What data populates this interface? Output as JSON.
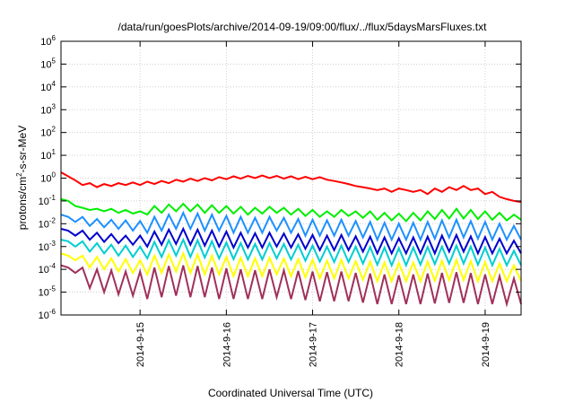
{
  "chart_data": {
    "type": "line",
    "title": "/data/run/goesPlots/archive/2014-09-19/09:00/flux/../flux/5daysMarsFluxes.txt",
    "xlabel": "Coordinated Universal Time (UTC)",
    "ylabel": {
      "base": "protons/cm",
      "sup": "2",
      "rest": "-s-sr-MeV"
    },
    "xlim": [
      "2014-09-14T02:00",
      "2014-09-19T10:00"
    ],
    "ylim": [
      1e-06,
      1000000
    ],
    "yscale": "log",
    "grid": true,
    "legend": "none",
    "x_ticks": [
      "2014-9-15",
      "2014-9-16",
      "2014-9-17",
      "2014-9-18",
      "2014-9-19"
    ],
    "y_ticks": [
      {
        "base": "10",
        "exp": "-6"
      },
      {
        "base": "10",
        "exp": "-5"
      },
      {
        "base": "10",
        "exp": "-4"
      },
      {
        "base": "10",
        "exp": "-3"
      },
      {
        "base": "10",
        "exp": "-2"
      },
      {
        "base": "10",
        "exp": "-1"
      },
      {
        "base": "10",
        "exp": "0"
      },
      {
        "base": "10",
        "exp": "1"
      },
      {
        "base": "10",
        "exp": "2"
      },
      {
        "base": "10",
        "exp": "3"
      },
      {
        "base": "10",
        "exp": "4"
      },
      {
        "base": "10",
        "exp": "5"
      },
      {
        "base": "10",
        "exp": "6"
      }
    ],
    "x": [
      "2014-09-14T02:00",
      "2014-09-14T04:00",
      "2014-09-14T06:00",
      "2014-09-14T08:00",
      "2014-09-14T10:00",
      "2014-09-14T12:00",
      "2014-09-14T14:00",
      "2014-09-14T16:00",
      "2014-09-14T18:00",
      "2014-09-14T20:00",
      "2014-09-14T22:00",
      "2014-09-15T00:00",
      "2014-09-15T02:00",
      "2014-09-15T04:00",
      "2014-09-15T06:00",
      "2014-09-15T08:00",
      "2014-09-15T10:00",
      "2014-09-15T12:00",
      "2014-09-15T14:00",
      "2014-09-15T16:00",
      "2014-09-15T18:00",
      "2014-09-15T20:00",
      "2014-09-15T22:00",
      "2014-09-16T00:00",
      "2014-09-16T02:00",
      "2014-09-16T04:00",
      "2014-09-16T06:00",
      "2014-09-16T08:00",
      "2014-09-16T10:00",
      "2014-09-16T12:00",
      "2014-09-16T14:00",
      "2014-09-16T16:00",
      "2014-09-16T18:00",
      "2014-09-16T20:00",
      "2014-09-16T22:00",
      "2014-09-17T00:00",
      "2014-09-17T02:00",
      "2014-09-17T04:00",
      "2014-09-17T06:00",
      "2014-09-17T08:00",
      "2014-09-17T10:00",
      "2014-09-17T12:00",
      "2014-09-17T14:00",
      "2014-09-17T16:00",
      "2014-09-17T18:00",
      "2014-09-17T20:00",
      "2014-09-17T22:00",
      "2014-09-18T00:00",
      "2014-09-18T02:00",
      "2014-09-18T04:00",
      "2014-09-18T06:00",
      "2014-09-18T08:00",
      "2014-09-18T10:00",
      "2014-09-18T12:00",
      "2014-09-18T14:00",
      "2014-09-18T16:00",
      "2014-09-18T18:00",
      "2014-09-18T20:00",
      "2014-09-18T22:00",
      "2014-09-19T00:00",
      "2014-09-19T02:00",
      "2014-09-19T04:00",
      "2014-09-19T06:00",
      "2014-09-19T08:00",
      "2014-09-19T10:00"
    ],
    "series": [
      {
        "color": "#ff0000",
        "values": [
          1.8,
          1.2,
          0.8,
          0.5,
          0.6,
          0.4,
          0.55,
          0.45,
          0.6,
          0.5,
          0.65,
          0.5,
          0.7,
          0.55,
          0.75,
          0.6,
          0.85,
          0.7,
          0.95,
          0.75,
          1.0,
          0.8,
          1.1,
          0.9,
          1.2,
          0.95,
          1.25,
          1.0,
          1.3,
          1.0,
          1.25,
          0.95,
          1.2,
          0.9,
          1.15,
          0.9,
          1.1,
          0.85,
          0.75,
          0.65,
          0.55,
          0.45,
          0.4,
          0.35,
          0.3,
          0.35,
          0.25,
          0.35,
          0.3,
          0.25,
          0.3,
          0.2,
          0.35,
          0.25,
          0.4,
          0.3,
          0.45,
          0.3,
          0.35,
          0.2,
          0.25,
          0.15,
          0.12,
          0.1,
          0.09
        ]
      },
      {
        "color": "#00ee00",
        "values": [
          0.12,
          0.1,
          0.06,
          0.05,
          0.04,
          0.045,
          0.035,
          0.045,
          0.03,
          0.04,
          0.028,
          0.035,
          0.025,
          0.06,
          0.03,
          0.07,
          0.035,
          0.075,
          0.035,
          0.07,
          0.03,
          0.065,
          0.03,
          0.06,
          0.028,
          0.055,
          0.025,
          0.05,
          0.028,
          0.055,
          0.03,
          0.05,
          0.025,
          0.045,
          0.022,
          0.04,
          0.02,
          0.035,
          0.02,
          0.04,
          0.022,
          0.035,
          0.018,
          0.035,
          0.015,
          0.03,
          0.014,
          0.028,
          0.013,
          0.03,
          0.014,
          0.035,
          0.016,
          0.04,
          0.017,
          0.045,
          0.017,
          0.04,
          0.016,
          0.035,
          0.015,
          0.03,
          0.014,
          0.025,
          0.015
        ]
      },
      {
        "color": "#1e90ff",
        "values": [
          0.025,
          0.02,
          0.012,
          0.02,
          0.008,
          0.016,
          0.007,
          0.015,
          0.006,
          0.014,
          0.005,
          0.013,
          0.004,
          0.02,
          0.005,
          0.025,
          0.006,
          0.03,
          0.006,
          0.028,
          0.005,
          0.025,
          0.005,
          0.022,
          0.004,
          0.02,
          0.004,
          0.018,
          0.004,
          0.02,
          0.005,
          0.018,
          0.004,
          0.016,
          0.003,
          0.015,
          0.003,
          0.014,
          0.003,
          0.015,
          0.003,
          0.013,
          0.0025,
          0.012,
          0.002,
          0.011,
          0.002,
          0.01,
          0.002,
          0.011,
          0.002,
          0.012,
          0.0022,
          0.014,
          0.0025,
          0.015,
          0.0025,
          0.013,
          0.0022,
          0.012,
          0.002,
          0.01,
          0.002,
          0.008,
          0.002
        ]
      },
      {
        "color": "#0000cd",
        "values": [
          0.006,
          0.005,
          0.003,
          0.005,
          0.002,
          0.004,
          0.0016,
          0.0035,
          0.0014,
          0.003,
          0.0012,
          0.003,
          0.001,
          0.0045,
          0.0012,
          0.0055,
          0.0013,
          0.006,
          0.0012,
          0.0055,
          0.0011,
          0.005,
          0.001,
          0.0045,
          0.0009,
          0.004,
          0.0009,
          0.0038,
          0.0009,
          0.004,
          0.001,
          0.0037,
          0.0009,
          0.0034,
          0.0008,
          0.0032,
          0.0007,
          0.003,
          0.0007,
          0.0032,
          0.0007,
          0.0028,
          0.0006,
          0.0027,
          0.0005,
          0.0025,
          0.0005,
          0.0023,
          0.0005,
          0.0025,
          0.0005,
          0.0027,
          0.0005,
          0.003,
          0.0006,
          0.0032,
          0.0006,
          0.0028,
          0.0005,
          0.0026,
          0.0005,
          0.0022,
          0.0005,
          0.0018,
          0.0005
        ]
      },
      {
        "color": "#00ced1",
        "values": [
          0.002,
          0.0017,
          0.001,
          0.0017,
          0.0006,
          0.0014,
          0.0005,
          0.0012,
          0.0004,
          0.0011,
          0.00035,
          0.001,
          0.0003,
          0.0016,
          0.00035,
          0.0019,
          0.0004,
          0.002,
          0.00035,
          0.0019,
          0.00033,
          0.0017,
          0.0003,
          0.0015,
          0.00028,
          0.0014,
          0.00027,
          0.0013,
          0.00027,
          0.0014,
          0.0003,
          0.0013,
          0.00027,
          0.0012,
          0.00024,
          0.0011,
          0.00022,
          0.001,
          0.00021,
          0.0011,
          0.00021,
          0.001,
          0.00018,
          0.00095,
          0.00016,
          0.0009,
          0.00015,
          0.00085,
          0.00015,
          0.0009,
          0.00016,
          0.00095,
          0.00017,
          0.001,
          0.00018,
          0.0011,
          0.00018,
          0.001,
          0.00016,
          0.0009,
          0.00015,
          0.0008,
          0.00015,
          0.00065,
          0.00015
        ]
      },
      {
        "color": "#ffff00",
        "values": [
          0.0005,
          0.0004,
          0.00025,
          0.0004,
          0.00012,
          0.00035,
          0.0001,
          0.0003,
          8e-05,
          0.00028,
          7e-05,
          0.00025,
          6e-05,
          0.0004,
          7e-05,
          0.00045,
          8e-05,
          0.0005,
          7e-05,
          0.00045,
          6e-05,
          0.0004,
          6e-05,
          0.00035,
          5e-05,
          0.00032,
          5e-05,
          0.0003,
          5e-05,
          0.00032,
          6e-05,
          0.0003,
          5e-05,
          0.00028,
          4.5e-05,
          0.00026,
          4e-05,
          0.00024,
          4e-05,
          0.00026,
          4e-05,
          0.00023,
          3.5e-05,
          0.00022,
          3e-05,
          0.0002,
          3e-05,
          0.00019,
          3e-05,
          0.0002,
          3e-05,
          0.00022,
          3.2e-05,
          0.00024,
          3.4e-05,
          0.00026,
          3.4e-05,
          0.00023,
          3e-05,
          0.00021,
          3e-05,
          0.00018,
          3e-05,
          0.00015,
          3e-05
        ]
      },
      {
        "color": "#a0305a",
        "values": [
          0.00015,
          0.00012,
          7e-05,
          0.00012,
          1.5e-05,
          0.0001,
          1e-05,
          9e-05,
          8e-06,
          8e-05,
          7e-06,
          8e-05,
          5e-06,
          0.00012,
          6e-06,
          0.00014,
          7e-06,
          0.00015,
          6e-06,
          0.00014,
          6e-06,
          0.00012,
          5e-06,
          0.00011,
          5e-06,
          0.0001,
          5e-06,
          9e-05,
          5e-06,
          0.0001,
          6e-06,
          9e-05,
          5e-06,
          8.5e-05,
          4.5e-06,
          8e-05,
          4e-06,
          7.5e-05,
          4e-06,
          8e-05,
          4e-06,
          7e-05,
          3.5e-06,
          6.5e-05,
          3e-06,
          6e-05,
          3e-06,
          5.5e-05,
          3e-06,
          6e-05,
          3e-06,
          6.5e-05,
          3.2e-06,
          7e-05,
          3.4e-06,
          7.5e-05,
          3.4e-06,
          6.8e-05,
          3e-06,
          6e-05,
          3e-06,
          5e-05,
          3e-06,
          4e-05,
          3e-06
        ]
      }
    ]
  }
}
